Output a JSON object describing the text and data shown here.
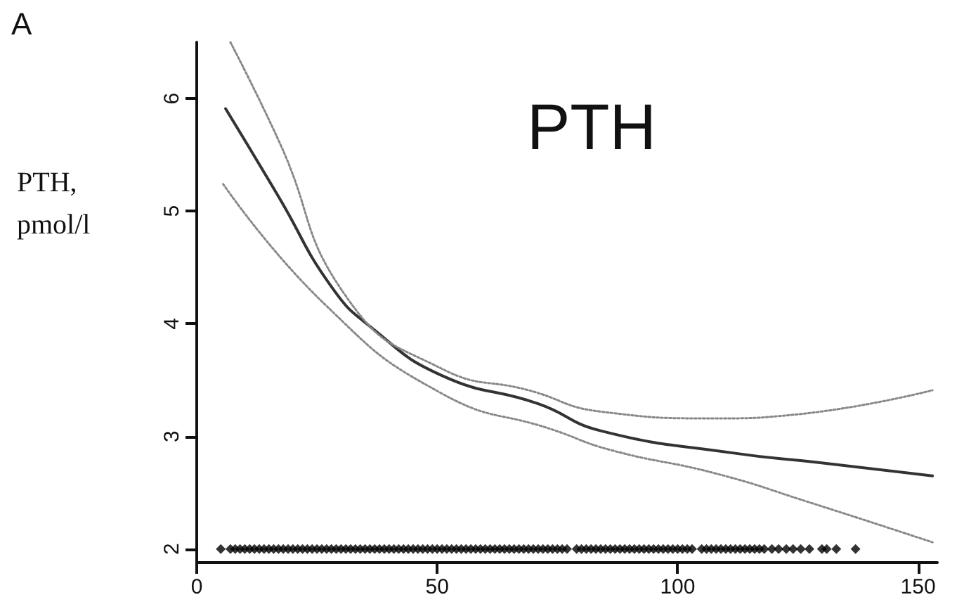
{
  "chart_data": {
    "type": "line",
    "title": "PTH",
    "ylabel": "PTH,\npmol/l",
    "annotations": [
      "A"
    ],
    "xlim": [
      0,
      154
    ],
    "xticks": [
      0,
      50,
      100,
      150
    ],
    "ylim": [
      1.88,
      6.5
    ],
    "yticks": [
      2,
      3,
      4,
      5,
      6
    ],
    "grid": false,
    "series": [
      {
        "color": "#333333",
        "line_style": "solid",
        "marker": "none",
        "x": [
          6,
          17,
          28,
          36.5,
          51,
          71,
          84,
          112,
          129,
          153
        ],
        "values": [
          5.91,
          5.13,
          4.33,
          3.96,
          3.54,
          3.29,
          3.05,
          2.85,
          2.77,
          2.65
        ]
      },
      {
        "color": "#888888",
        "line_style": "dotted",
        "marker": "none",
        "x": [
          7,
          17,
          31.6,
          51,
          69,
          84,
          108,
          123.5,
          153
        ],
        "values": [
          6.5,
          5.63,
          4.21,
          3.6,
          3.41,
          3.22,
          3.16,
          3.19,
          3.41
        ]
      },
      {
        "color": "#888888",
        "line_style": "dotted",
        "marker": "none",
        "x": [
          5.5,
          26.7,
          51,
          74,
          86,
          108,
          127,
          153
        ],
        "values": [
          5.24,
          4.17,
          3.38,
          3.06,
          2.88,
          2.67,
          2.42,
          2.06
        ]
      },
      {
        "type": "scatter",
        "marker": "diamond",
        "color": "#000000",
        "x": [
          5,
          7,
          8,
          9,
          10,
          11,
          12,
          13,
          14,
          15,
          16,
          17,
          18,
          19,
          20,
          21,
          22,
          23,
          24,
          25,
          26,
          27,
          28,
          29,
          30,
          31,
          32,
          33,
          34,
          35,
          36,
          37,
          38,
          39,
          40,
          41,
          42,
          43,
          44,
          45,
          46,
          47,
          48,
          49,
          50,
          51,
          52,
          53,
          54,
          55,
          56,
          57,
          58,
          59,
          60,
          61,
          62,
          63,
          64,
          65,
          66,
          67,
          68,
          69,
          70,
          71,
          72,
          73,
          74,
          75,
          76,
          77,
          79,
          80,
          81,
          82,
          83,
          84,
          85,
          86,
          87,
          88,
          89,
          90,
          91,
          92,
          93,
          94,
          95,
          96,
          97,
          98,
          99,
          100,
          101,
          102,
          103,
          105,
          106,
          107,
          108,
          109,
          110,
          111,
          112,
          113,
          114,
          115,
          116,
          117,
          118,
          119.6,
          121,
          122.6,
          124,
          125.6,
          127.4,
          130,
          131,
          133,
          137
        ],
        "values": [
          2,
          2,
          2,
          2,
          2,
          2,
          2,
          2,
          2,
          2,
          2,
          2,
          2,
          2,
          2,
          2,
          2,
          2,
          2,
          2,
          2,
          2,
          2,
          2,
          2,
          2,
          2,
          2,
          2,
          2,
          2,
          2,
          2,
          2,
          2,
          2,
          2,
          2,
          2,
          2,
          2,
          2,
          2,
          2,
          2,
          2,
          2,
          2,
          2,
          2,
          2,
          2,
          2,
          2,
          2,
          2,
          2,
          2,
          2,
          2,
          2,
          2,
          2,
          2,
          2,
          2,
          2,
          2,
          2,
          2,
          2,
          2,
          2,
          2,
          2,
          2,
          2,
          2,
          2,
          2,
          2,
          2,
          2,
          2,
          2,
          2,
          2,
          2,
          2,
          2,
          2,
          2,
          2,
          2,
          2,
          2,
          2,
          2,
          2,
          2,
          2,
          2,
          2,
          2,
          2,
          2,
          2,
          2,
          2,
          2,
          2,
          2,
          2,
          2,
          2,
          2,
          2,
          2,
          2,
          2,
          2
        ]
      }
    ]
  }
}
